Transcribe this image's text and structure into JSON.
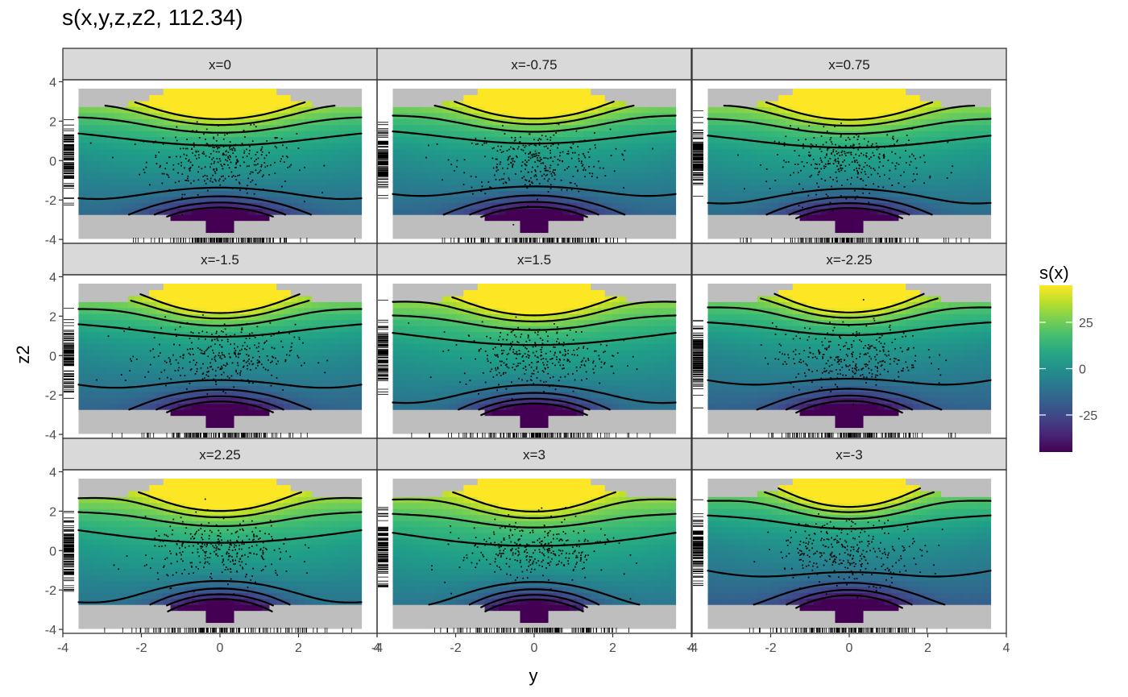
{
  "title": "s(x,y,z,z2, 112.34)",
  "chart_data": {
    "type": "heatmap",
    "title": "s(x,y,z,z2, 112.34)",
    "xlabel": "y",
    "ylabel": "z2",
    "xlim": [
      -4,
      4
    ],
    "ylim": [
      -4.2,
      4.1
    ],
    "x_ticks": [
      -4,
      -2,
      0,
      2,
      4
    ],
    "y_ticks": [
      -4,
      -2,
      0,
      2,
      4
    ],
    "x_tick_labels": [
      "-4",
      "-2",
      "0",
      "2",
      "4"
    ],
    "y_tick_labels": [
      "-4",
      "-2",
      "0",
      "2",
      "4"
    ],
    "facet_variable": "x",
    "panels": [
      {
        "label": "x=0",
        "x": 0
      },
      {
        "label": "x=-0.75",
        "x": -0.75
      },
      {
        "label": "x=0.75",
        "x": 0.75
      },
      {
        "label": "x=-1.5",
        "x": -1.5
      },
      {
        "label": "x=1.5",
        "x": 1.5
      },
      {
        "label": "x=-2.25",
        "x": -2.25
      },
      {
        "label": "x=2.25",
        "x": 2.25
      },
      {
        "label": "x=3",
        "x": 3
      },
      {
        "label": "x=-3",
        "x": -3
      }
    ],
    "legend": {
      "title": "s(x)",
      "position": "right",
      "range": [
        -45,
        45
      ],
      "ticks": [
        25,
        0,
        -25
      ],
      "tick_labels": [
        "25",
        "0",
        "-25"
      ],
      "colormap": "viridis"
    },
    "contours": true,
    "data_points": true,
    "rug": true,
    "background_missing_color": "#bebebe"
  }
}
